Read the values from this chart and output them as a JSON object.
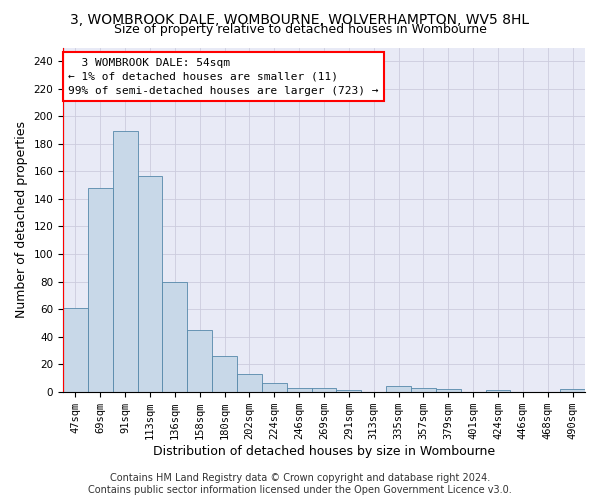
{
  "title_line1": "3, WOMBROOK DALE, WOMBOURNE, WOLVERHAMPTON, WV5 8HL",
  "title_line2": "Size of property relative to detached houses in Wombourne",
  "xlabel": "Distribution of detached houses by size in Wombourne",
  "ylabel": "Number of detached properties",
  "categories": [
    "47sqm",
    "69sqm",
    "91sqm",
    "113sqm",
    "136sqm",
    "158sqm",
    "180sqm",
    "202sqm",
    "224sqm",
    "246sqm",
    "269sqm",
    "291sqm",
    "313sqm",
    "335sqm",
    "357sqm",
    "379sqm",
    "401sqm",
    "424sqm",
    "446sqm",
    "468sqm",
    "490sqm"
  ],
  "values": [
    61,
    148,
    189,
    157,
    80,
    45,
    26,
    13,
    6,
    3,
    3,
    1,
    0,
    4,
    3,
    2,
    0,
    1,
    0,
    0,
    2
  ],
  "bar_color": "#c8d8e8",
  "bar_edge_color": "#5588aa",
  "annotation_text": "  3 WOMBROOK DALE: 54sqm\n← 1% of detached houses are smaller (11)\n99% of semi-detached houses are larger (723) →",
  "annotation_box_color": "white",
  "annotation_box_edge_color": "red",
  "ylim": [
    0,
    250
  ],
  "yticks": [
    0,
    20,
    40,
    60,
    80,
    100,
    120,
    140,
    160,
    180,
    200,
    220,
    240
  ],
  "grid_color": "#ccccdd",
  "background_color": "#e8eaf6",
  "footer_line1": "Contains HM Land Registry data © Crown copyright and database right 2024.",
  "footer_line2": "Contains public sector information licensed under the Open Government Licence v3.0.",
  "title_fontsize": 10,
  "subtitle_fontsize": 9,
  "axis_label_fontsize": 9,
  "tick_fontsize": 7.5,
  "annotation_fontsize": 8,
  "footer_fontsize": 7
}
